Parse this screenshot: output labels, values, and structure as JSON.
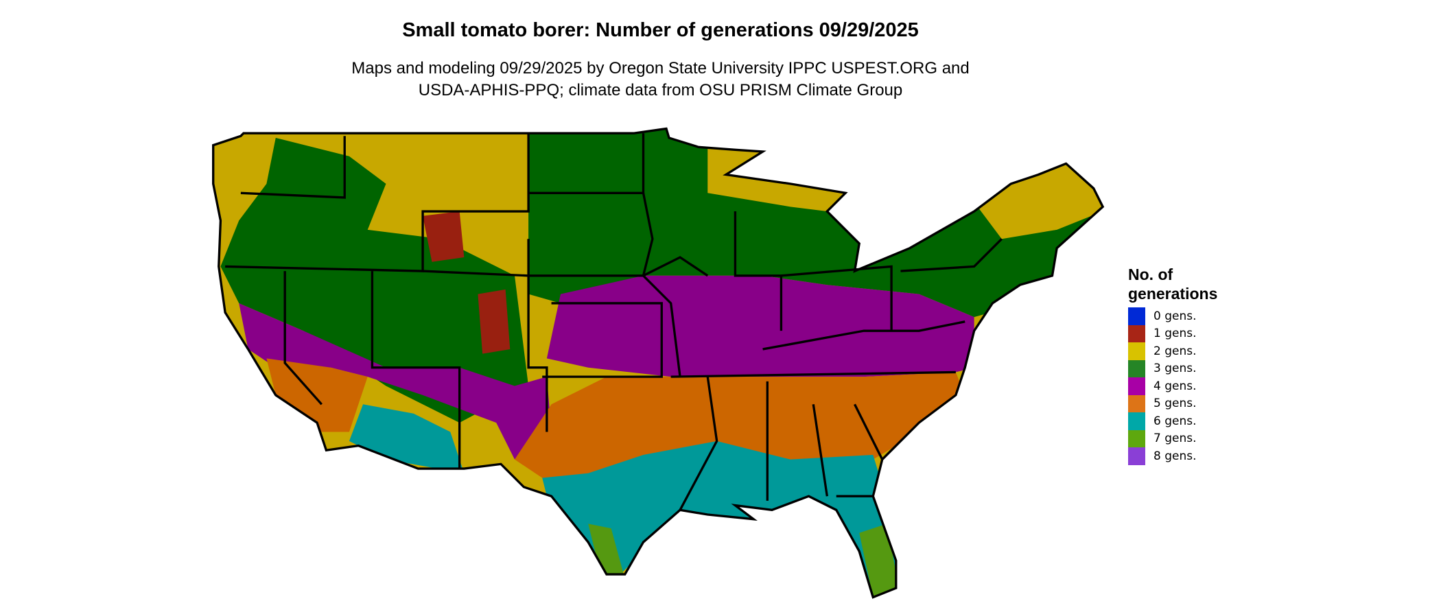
{
  "title": "Small tomato borer: Number of generations 09/29/2025",
  "subtitle_line1": "Maps and modeling 09/29/2025 by Oregon State University IPPC USPEST.ORG and",
  "subtitle_line2": "USDA-APHIS-PPQ; climate data from OSU PRISM Climate Group",
  "legend": {
    "title_line1": "No. of",
    "title_line2": "generations",
    "items": [
      {
        "label": "0 gens.",
        "color": "#0029d6"
      },
      {
        "label": "1 gens.",
        "color": "#a82516"
      },
      {
        "label": "2 gens.",
        "color": "#d8c200"
      },
      {
        "label": "3 gens.",
        "color": "#258526"
      },
      {
        "label": "4 gens.",
        "color": "#a800a6"
      },
      {
        "label": "5 gens.",
        "color": "#dd7417"
      },
      {
        "label": "6 gens.",
        "color": "#00a8a8"
      },
      {
        "label": "7 gens.",
        "color": "#5ea80e"
      },
      {
        "label": "8 gens.",
        "color": "#8a3fd6"
      }
    ]
  },
  "map_colors": {
    "1": "#992010",
    "2": "#c8a800",
    "3": "#006400",
    "4": "#880088",
    "5": "#cc6600",
    "6": "#009999",
    "7": "#559911",
    "border": "#000000"
  }
}
